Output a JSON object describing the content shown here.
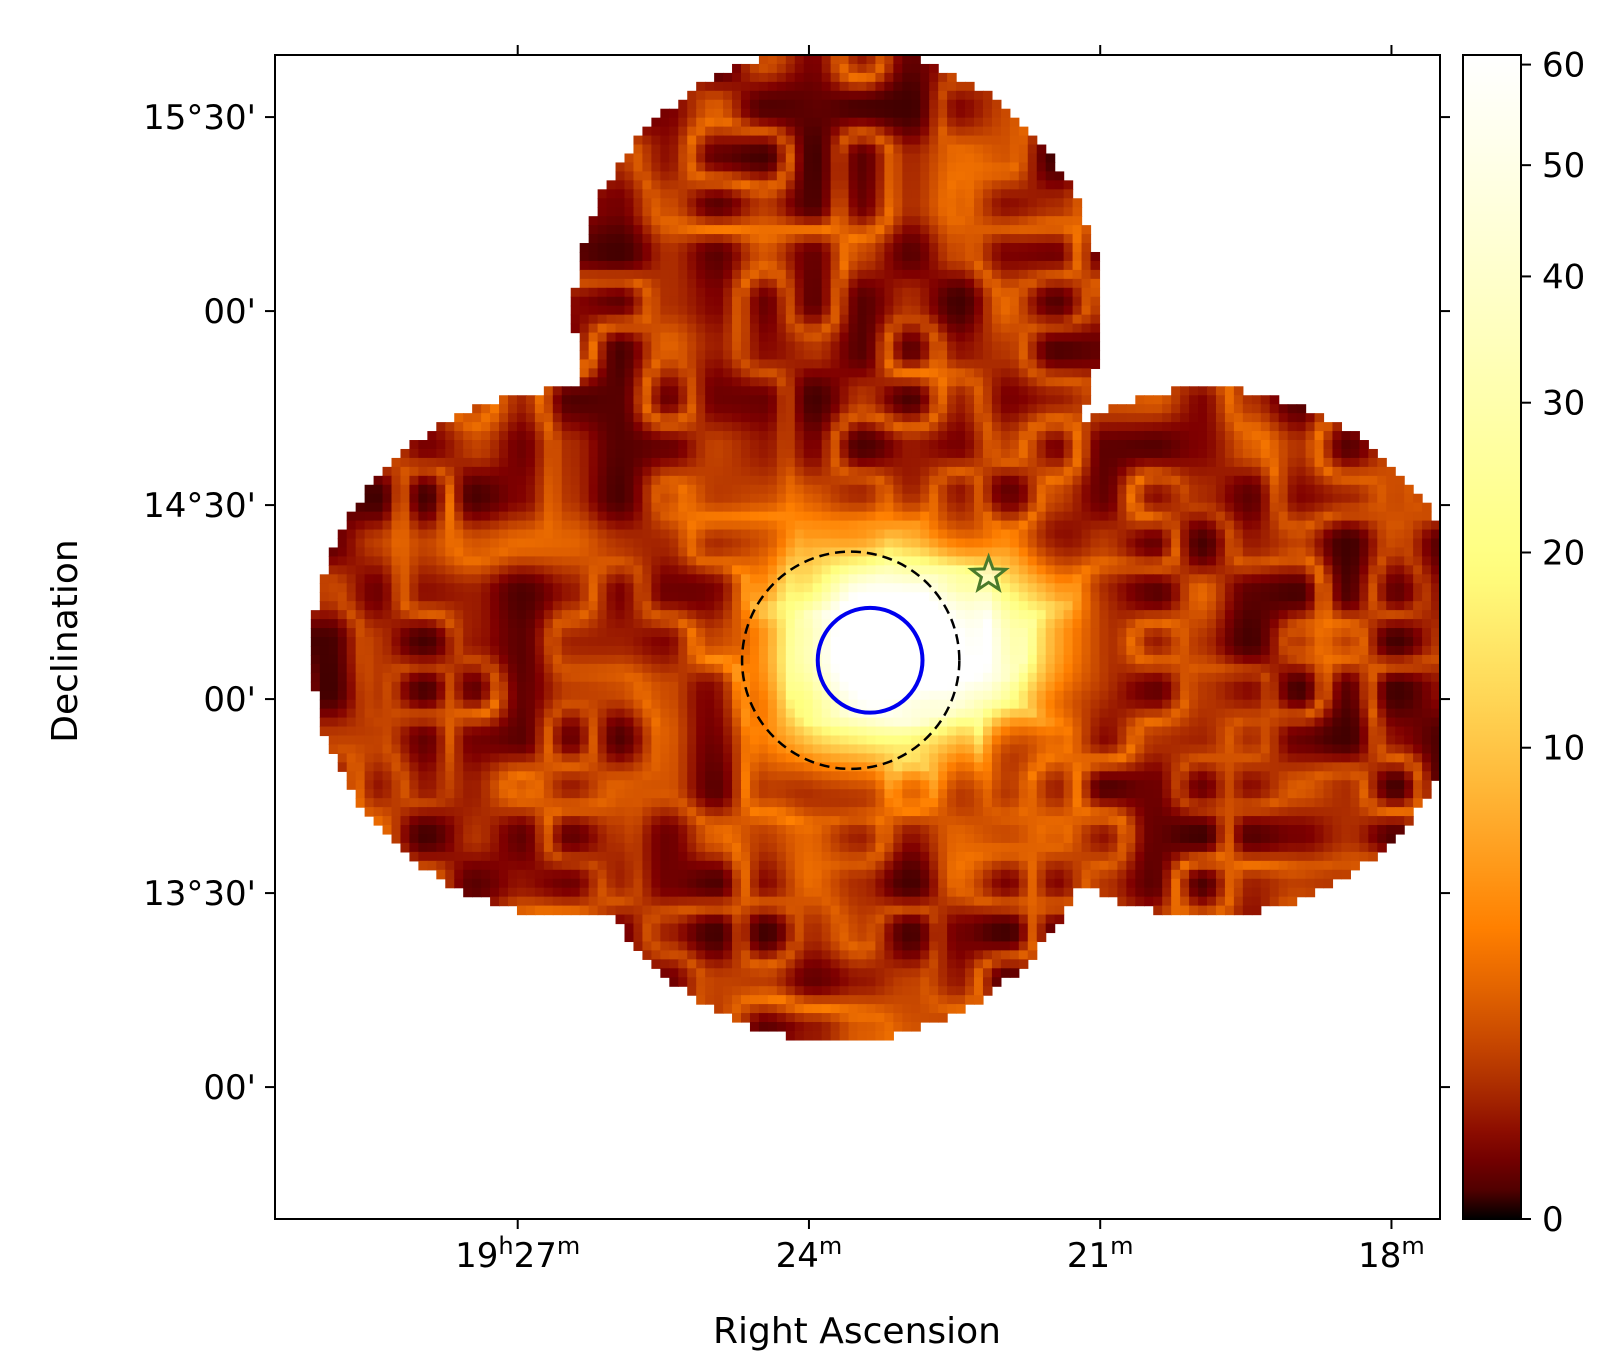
{
  "chart_data": {
    "type": "heatmap",
    "title": "",
    "xlabel": "Right Ascension",
    "ylabel": "Declination",
    "x_ticks": [
      {
        "main": "19",
        "sup1": "h",
        "rest": "27",
        "sup2": "m",
        "ra_min": 27
      },
      {
        "main": "",
        "sup1": "",
        "rest": "24",
        "sup2": "m",
        "ra_min": 24
      },
      {
        "main": "",
        "sup1": "",
        "rest": "21",
        "sup2": "m",
        "ra_min": 21
      },
      {
        "main": "",
        "sup1": "",
        "rest": "18",
        "sup2": "m",
        "ra_min": 18
      }
    ],
    "y_ticks": [
      {
        "label": "15°30'",
        "dec_deg": 15.5
      },
      {
        "label": "00'",
        "dec_deg": 15.0
      },
      {
        "label": "14°30'",
        "dec_deg": 14.5
      },
      {
        "label": "00'",
        "dec_deg": 14.0
      },
      {
        "label": "13°30'",
        "dec_deg": 13.5
      },
      {
        "label": "00'",
        "dec_deg": 13.0
      }
    ],
    "ra_range_min": [
      29.5,
      17.5
    ],
    "dec_range_deg": [
      12.66,
      15.66
    ],
    "colorbar": {
      "colormap": "afmhot",
      "scale": "sqrt",
      "range": [
        0,
        61
      ],
      "tick_values": [
        0,
        10,
        20,
        30,
        40,
        50,
        60
      ],
      "tick_labels": [
        "0",
        "10",
        "20",
        "30",
        "40",
        "50",
        "60"
      ]
    },
    "footprint": {
      "description": "four overlapping circular pointings",
      "pointings": [
        {
          "ra_min": 23.7,
          "dec_deg": 15.0,
          "radius_deg": 0.68
        },
        {
          "ra_min": 23.7,
          "dec_deg": 13.8,
          "radius_deg": 0.68
        },
        {
          "ra_min": 26.4,
          "dec_deg": 14.12,
          "radius_deg": 0.68
        },
        {
          "ra_min": 19.9,
          "dec_deg": 14.12,
          "radius_deg": 0.68
        }
      ]
    },
    "peak": {
      "ra_min": 23.37,
      "dec_deg": 14.11,
      "value": 61
    },
    "extended_emission": {
      "ra_min": 22.3,
      "dec_deg": 14.15,
      "value": 38
    },
    "annotations": [
      {
        "kind": "circle",
        "style": "solid",
        "color": "#0000ee",
        "ra_min": 23.37,
        "dec_deg": 14.1,
        "radius_deg": 0.135
      },
      {
        "kind": "circle",
        "style": "dashed",
        "color": "#000000",
        "ra_min": 23.57,
        "dec_deg": 14.1,
        "radius_deg": 0.28
      },
      {
        "kind": "star",
        "color": "#4a7a2a",
        "ra_min": 22.15,
        "dec_deg": 14.32
      }
    ]
  }
}
